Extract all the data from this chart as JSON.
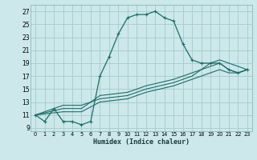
{
  "xlabel": "Humidex (Indice chaleur)",
  "bg_color": "#cce8ea",
  "grid_color": "#aacdd2",
  "line_color": "#1a6e6a",
  "xlim": [
    -0.5,
    23.5
  ],
  "ylim": [
    8.5,
    28
  ],
  "xticks": [
    0,
    1,
    2,
    3,
    4,
    5,
    6,
    7,
    8,
    9,
    10,
    11,
    12,
    13,
    14,
    15,
    16,
    17,
    18,
    19,
    20,
    21,
    22,
    23
  ],
  "yticks": [
    9,
    11,
    13,
    15,
    17,
    19,
    21,
    23,
    25,
    27
  ],
  "line1_x": [
    0,
    1,
    2,
    3,
    4,
    5,
    6,
    7,
    8,
    9,
    10,
    11,
    12,
    13,
    14,
    15,
    16,
    17,
    18,
    19,
    20,
    21,
    22,
    23
  ],
  "line1_y": [
    11,
    10,
    12,
    10,
    10,
    9.5,
    10,
    17,
    20,
    23.5,
    26,
    26.5,
    26.5,
    27,
    26,
    25.5,
    22,
    19.5,
    19,
    19,
    19,
    18,
    17.5,
    18
  ],
  "line2_x": [
    0,
    3,
    5,
    7,
    10,
    12,
    15,
    17,
    19,
    20,
    21,
    22,
    23
  ],
  "line2_y": [
    11,
    12,
    12,
    14,
    14.5,
    15.5,
    16.5,
    17.5,
    18.5,
    19,
    18,
    17.5,
    18
  ],
  "line3_x": [
    0,
    3,
    5,
    7,
    10,
    12,
    15,
    17,
    19,
    20,
    21,
    22,
    23
  ],
  "line3_y": [
    11,
    11.5,
    11.5,
    13,
    13.5,
    14.5,
    15.5,
    16.5,
    17.5,
    18,
    17.5,
    17.5,
    18
  ],
  "line4_x": [
    0,
    3,
    5,
    7,
    10,
    12,
    15,
    17,
    19,
    20,
    21,
    22,
    23
  ],
  "line4_y": [
    11,
    12.5,
    12.5,
    13.5,
    14,
    15,
    16,
    17,
    19,
    19.5,
    19,
    18.5,
    18
  ]
}
